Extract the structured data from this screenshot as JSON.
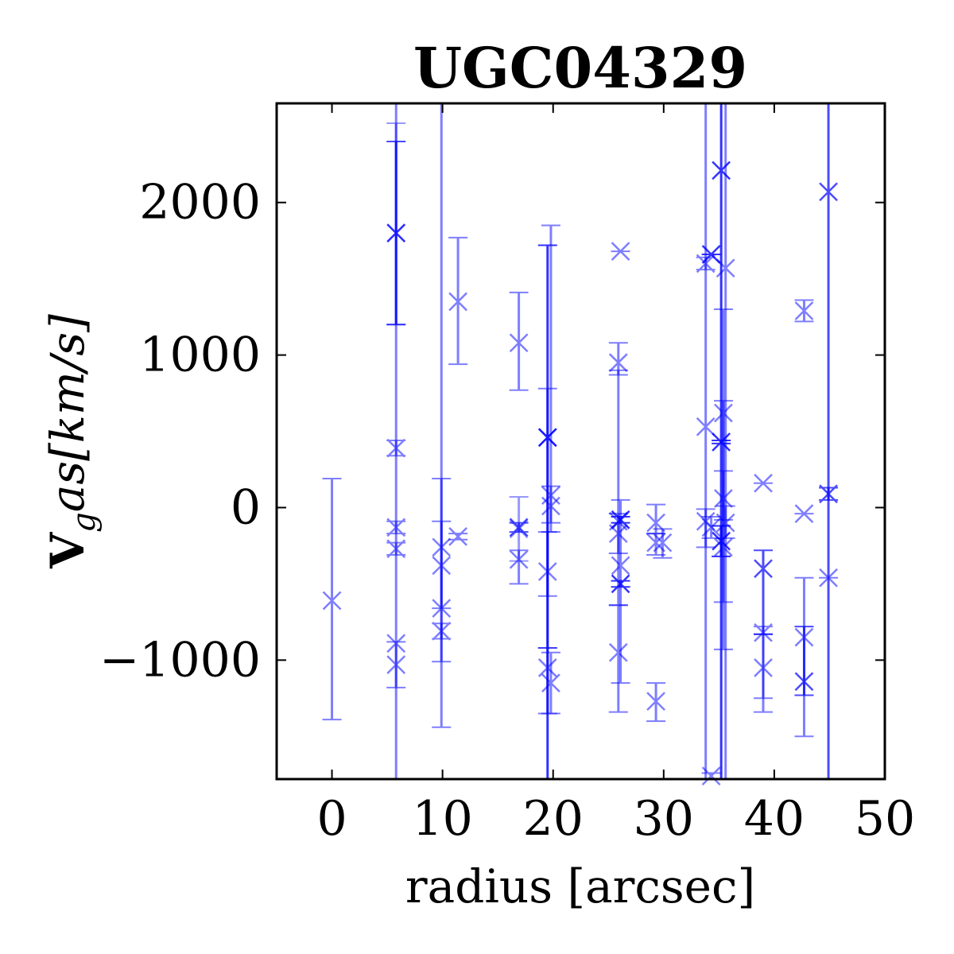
{
  "chart_data": {
    "type": "scatter",
    "title": "UGC04329",
    "xlabel": "radius [arcsec]",
    "ylabel": {
      "bold": "V",
      "sub": "g",
      "rest": "as[km/s]"
    },
    "xlim": [
      -5,
      50
    ],
    "ylim": [
      -1780,
      2650
    ],
    "xticks": [
      0,
      10,
      20,
      30,
      40,
      50
    ],
    "yticks": [
      -1000,
      0,
      1000,
      2000
    ],
    "ytick_labels": [
      "−1000",
      "0",
      "1000",
      "2000"
    ],
    "marker": "x",
    "color": "#0000ff",
    "grid": false,
    "points": [
      {
        "x": 0,
        "y": -610,
        "lo": -1390,
        "hi": 190,
        "a": 0.5
      },
      {
        "x": 5.8,
        "y": 1800,
        "lo": 1200,
        "hi": 2400,
        "a": 0.7
      },
      {
        "x": 5.8,
        "y": 1800,
        "lo": 1200,
        "hi": 2520,
        "a": 0.4
      },
      {
        "x": 5.8,
        "y": 390,
        "lo": 340,
        "hi": 440,
        "a": 0.5
      },
      {
        "x": 5.8,
        "y": -130,
        "lo": -170,
        "hi": -90,
        "a": 0.5
      },
      {
        "x": 5.8,
        "y": -270,
        "lo": -310,
        "hi": -230,
        "a": 0.5
      },
      {
        "x": 5.8,
        "y": -890,
        "lo": -1780,
        "hi": 2650,
        "a": 0.5
      },
      {
        "x": 5.8,
        "y": -1030,
        "lo": -1180,
        "hi": -880,
        "a": 0.5
      },
      {
        "x": 9.9,
        "y": -260,
        "lo": -1440,
        "hi": 2650,
        "a": 0.5
      },
      {
        "x": 9.9,
        "y": -380,
        "lo": -660,
        "hi": -90,
        "a": 0.5
      },
      {
        "x": 9.9,
        "y": -660,
        "lo": -1010,
        "hi": 190,
        "a": 0.5
      },
      {
        "x": 9.9,
        "y": -810,
        "lo": -860,
        "hi": -760,
        "a": 0.5
      },
      {
        "x": 11.4,
        "y": 1350,
        "lo": 940,
        "hi": 1770,
        "a": 0.5
      },
      {
        "x": 11.4,
        "y": -190,
        "lo": -210,
        "hi": -170,
        "a": 0.5
      },
      {
        "x": 16.9,
        "y": 1080,
        "lo": 770,
        "hi": 1410,
        "a": 0.5
      },
      {
        "x": 16.9,
        "y": -130,
        "lo": -160,
        "hi": -100,
        "a": 0.7
      },
      {
        "x": 16.9,
        "y": -140,
        "lo": -350,
        "hi": 70,
        "a": 0.4
      },
      {
        "x": 16.9,
        "y": -340,
        "lo": -500,
        "hi": -280,
        "a": 0.5
      },
      {
        "x": 19.5,
        "y": 460,
        "lo": -1780,
        "hi": 1720,
        "a": 0.8
      },
      {
        "x": 19.5,
        "y": 460,
        "lo": -920,
        "hi": 780,
        "a": 0.5
      },
      {
        "x": 19.5,
        "y": -420,
        "lo": -580,
        "hi": -160,
        "a": 0.5
      },
      {
        "x": 19.5,
        "y": -1050,
        "lo": -1350,
        "hi": -920,
        "a": 0.5
      },
      {
        "x": 19.8,
        "y": 80,
        "lo": -160,
        "hi": 1850,
        "a": 0.5
      },
      {
        "x": 19.8,
        "y": 10,
        "lo": -100,
        "hi": 140,
        "a": 0.5
      },
      {
        "x": 19.8,
        "y": -1150,
        "lo": -1350,
        "hi": -950,
        "a": 0.5
      },
      {
        "x": 25.9,
        "y": 950,
        "lo": 870,
        "hi": 1080,
        "a": 0.5
      },
      {
        "x": 25.9,
        "y": -90,
        "lo": -640,
        "hi": 900,
        "a": 0.5
      },
      {
        "x": 25.9,
        "y": -170,
        "lo": -300,
        "hi": -40,
        "a": 0.5
      },
      {
        "x": 25.9,
        "y": -950,
        "lo": -1340,
        "hi": -640,
        "a": 0.5
      },
      {
        "x": 26.1,
        "y": 1680,
        "lo": 1680,
        "hi": 1680,
        "a": 0.5
      },
      {
        "x": 26.1,
        "y": -80,
        "lo": -100,
        "hi": -60,
        "a": 0.8
      },
      {
        "x": 26.1,
        "y": -380,
        "lo": -1150,
        "hi": 50,
        "a": 0.5
      },
      {
        "x": 26.1,
        "y": -500,
        "lo": -520,
        "hi": -480,
        "a": 0.8
      },
      {
        "x": 29.3,
        "y": -100,
        "lo": -170,
        "hi": 20,
        "a": 0.5
      },
      {
        "x": 29.3,
        "y": -230,
        "lo": -310,
        "hi": -170,
        "a": 0.5
      },
      {
        "x": 29.3,
        "y": -1270,
        "lo": -1400,
        "hi": -1150,
        "a": 0.5
      },
      {
        "x": 29.9,
        "y": -230,
        "lo": -330,
        "hi": -140,
        "a": 0.5
      },
      {
        "x": 33.8,
        "y": 530,
        "lo": -1780,
        "hi": 2650,
        "a": 0.5
      },
      {
        "x": 33.8,
        "y": 1600,
        "lo": 1560,
        "hi": 1640,
        "a": 0.5
      },
      {
        "x": 33.8,
        "y": -90,
        "lo": -260,
        "hi": -10,
        "a": 0.5
      },
      {
        "x": 34.3,
        "y": 1660,
        "lo": 1660,
        "hi": 1660,
        "a": 0.8
      },
      {
        "x": 34.3,
        "y": -130,
        "lo": -200,
        "hi": -60,
        "a": 0.5
      },
      {
        "x": 34.3,
        "y": -1760,
        "lo": -1780,
        "hi": -1740,
        "a": 0.5
      },
      {
        "x": 35.2,
        "y": 2210,
        "lo": -1780,
        "hi": 2650,
        "a": 0.8
      },
      {
        "x": 35.2,
        "y": 430,
        "lo": 420,
        "hi": 440,
        "a": 0.8
      },
      {
        "x": 35.2,
        "y": -220,
        "lo": -320,
        "hi": -120,
        "a": 0.8
      },
      {
        "x": 35.4,
        "y": 620,
        "lo": -930,
        "hi": 1300,
        "a": 0.5
      },
      {
        "x": 35.4,
        "y": 60,
        "lo": -80,
        "hi": 240,
        "a": 0.5
      },
      {
        "x": 35.4,
        "y": -260,
        "lo": -620,
        "hi": 700,
        "a": 0.5
      },
      {
        "x": 35.6,
        "y": 1570,
        "lo": -1780,
        "hi": 2650,
        "a": 0.5
      },
      {
        "x": 35.6,
        "y": -100,
        "lo": -200,
        "hi": 10,
        "a": 0.5
      },
      {
        "x": 39.0,
        "y": 160,
        "lo": 160,
        "hi": 160,
        "a": 0.5
      },
      {
        "x": 39.0,
        "y": -400,
        "lo": -830,
        "hi": -280,
        "a": 0.7
      },
      {
        "x": 39.0,
        "y": -820,
        "lo": -1340,
        "hi": -780,
        "a": 0.5
      },
      {
        "x": 39.0,
        "y": -1050,
        "lo": -1250,
        "hi": -830,
        "a": 0.5
      },
      {
        "x": 42.7,
        "y": 1290,
        "lo": 1220,
        "hi": 1360,
        "a": 0.5
      },
      {
        "x": 42.7,
        "y": -40,
        "lo": -40,
        "hi": -40,
        "a": 0.5
      },
      {
        "x": 42.7,
        "y": -850,
        "lo": -1500,
        "hi": -460,
        "a": 0.5
      },
      {
        "x": 42.7,
        "y": -1140,
        "lo": -1230,
        "hi": -780,
        "a": 0.7
      },
      {
        "x": 44.9,
        "y": 2070,
        "lo": -1780,
        "hi": 2650,
        "a": 0.7
      },
      {
        "x": 44.9,
        "y": 90,
        "lo": 50,
        "hi": 130,
        "a": 0.7
      },
      {
        "x": 44.9,
        "y": -460,
        "lo": -460,
        "hi": -460,
        "a": 0.5
      }
    ]
  }
}
